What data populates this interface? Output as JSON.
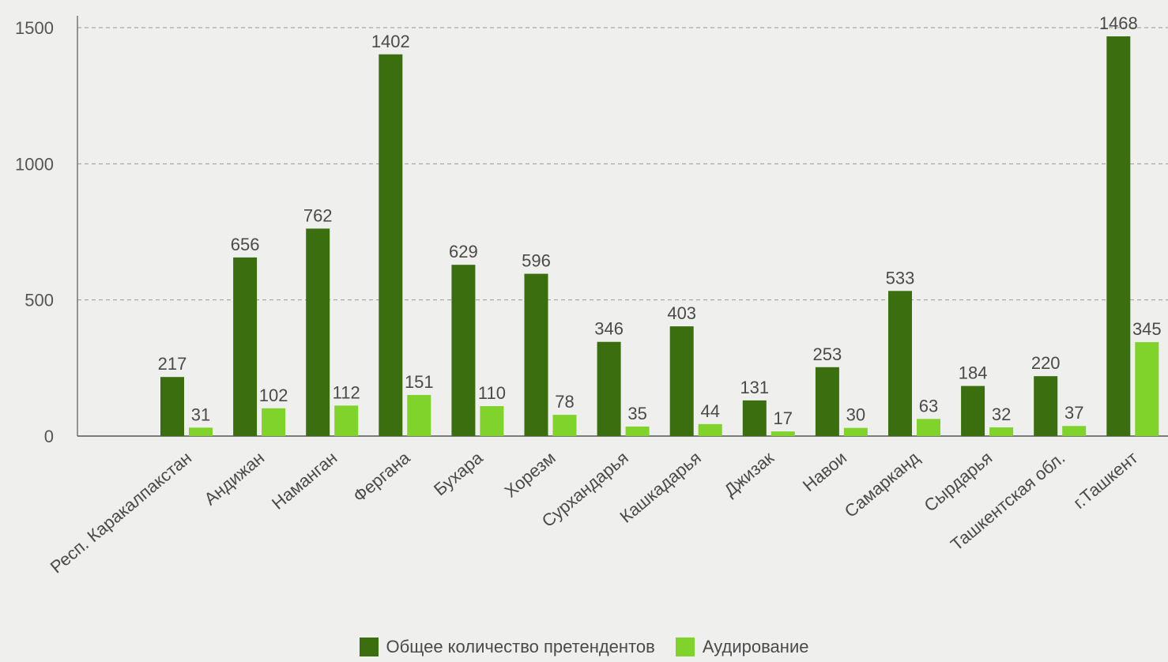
{
  "chart_data": {
    "type": "bar",
    "title": "",
    "xlabel": "",
    "ylabel": "",
    "ylim": [
      0,
      1500
    ],
    "yticks": [
      0,
      500,
      1000,
      1500
    ],
    "grid": true,
    "legend_position": "bottom",
    "categories": [
      "Респ. Каракалпакстан",
      "Андижан",
      "Наманган",
      "Фергана",
      "Бухара",
      "Хорезм",
      "Сурхандарья",
      "Кашкадарья",
      "Джизак",
      "Навои",
      "Самарканд",
      "Сырдарья",
      "Ташкентская обл.",
      "г.Ташкент"
    ],
    "series": [
      {
        "name": "Общее количество претендентов",
        "color": "#3b6e0f",
        "values": [
          217,
          656,
          762,
          1402,
          629,
          596,
          346,
          403,
          131,
          253,
          533,
          184,
          220,
          1468
        ]
      },
      {
        "name": "Аудирование",
        "color": "#7fd32b",
        "values": [
          31,
          102,
          112,
          151,
          110,
          78,
          35,
          44,
          17,
          30,
          63,
          32,
          37,
          345
        ]
      }
    ]
  }
}
